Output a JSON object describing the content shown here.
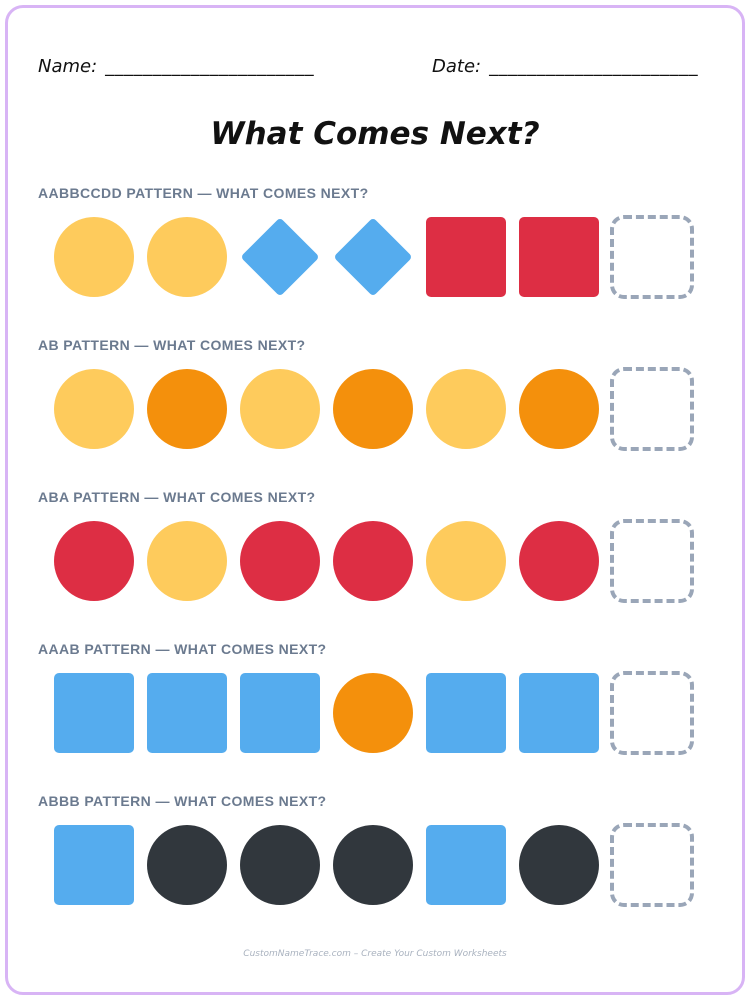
{
  "header": {
    "name_label": "Name:",
    "name_blank": "______________________",
    "date_label": "Date:",
    "date_blank": "______________________"
  },
  "title": "What Comes Next?",
  "colors": {
    "yellow": "#fecb5c",
    "blue": "#55acee",
    "red": "#dd2e44",
    "orange": "#f4900c",
    "black": "#31373d",
    "answer_border": "#9aa6b8",
    "page_border": "#d8b4f5"
  },
  "patterns": [
    {
      "label": "AABBCCDD PATTERN — WHAT COMES NEXT?",
      "shapes": [
        {
          "shape": "circle",
          "color": "yellow"
        },
        {
          "shape": "circle",
          "color": "yellow"
        },
        {
          "shape": "diamond",
          "color": "blue"
        },
        {
          "shape": "diamond",
          "color": "blue"
        },
        {
          "shape": "square",
          "color": "red"
        },
        {
          "shape": "square",
          "color": "red"
        }
      ]
    },
    {
      "label": "AB PATTERN — WHAT COMES NEXT?",
      "shapes": [
        {
          "shape": "circle",
          "color": "yellow"
        },
        {
          "shape": "circle",
          "color": "orange"
        },
        {
          "shape": "circle",
          "color": "yellow"
        },
        {
          "shape": "circle",
          "color": "orange"
        },
        {
          "shape": "circle",
          "color": "yellow"
        },
        {
          "shape": "circle",
          "color": "orange"
        }
      ]
    },
    {
      "label": "ABA PATTERN — WHAT COMES NEXT?",
      "shapes": [
        {
          "shape": "circle",
          "color": "red"
        },
        {
          "shape": "circle",
          "color": "yellow"
        },
        {
          "shape": "circle",
          "color": "red"
        },
        {
          "shape": "circle",
          "color": "red"
        },
        {
          "shape": "circle",
          "color": "yellow"
        },
        {
          "shape": "circle",
          "color": "red"
        }
      ]
    },
    {
      "label": "AAAB PATTERN — WHAT COMES NEXT?",
      "shapes": [
        {
          "shape": "square",
          "color": "blue"
        },
        {
          "shape": "square",
          "color": "blue"
        },
        {
          "shape": "square",
          "color": "blue"
        },
        {
          "shape": "circle",
          "color": "orange"
        },
        {
          "shape": "square",
          "color": "blue"
        },
        {
          "shape": "square",
          "color": "blue"
        }
      ]
    },
    {
      "label": "ABBB PATTERN — WHAT COMES NEXT?",
      "shapes": [
        {
          "shape": "square",
          "color": "blue"
        },
        {
          "shape": "circle",
          "color": "black"
        },
        {
          "shape": "circle",
          "color": "black"
        },
        {
          "shape": "circle",
          "color": "black"
        },
        {
          "shape": "square",
          "color": "blue"
        },
        {
          "shape": "circle",
          "color": "black"
        }
      ]
    }
  ],
  "footer": "CustomNameTrace.com – Create Your Custom Worksheets"
}
